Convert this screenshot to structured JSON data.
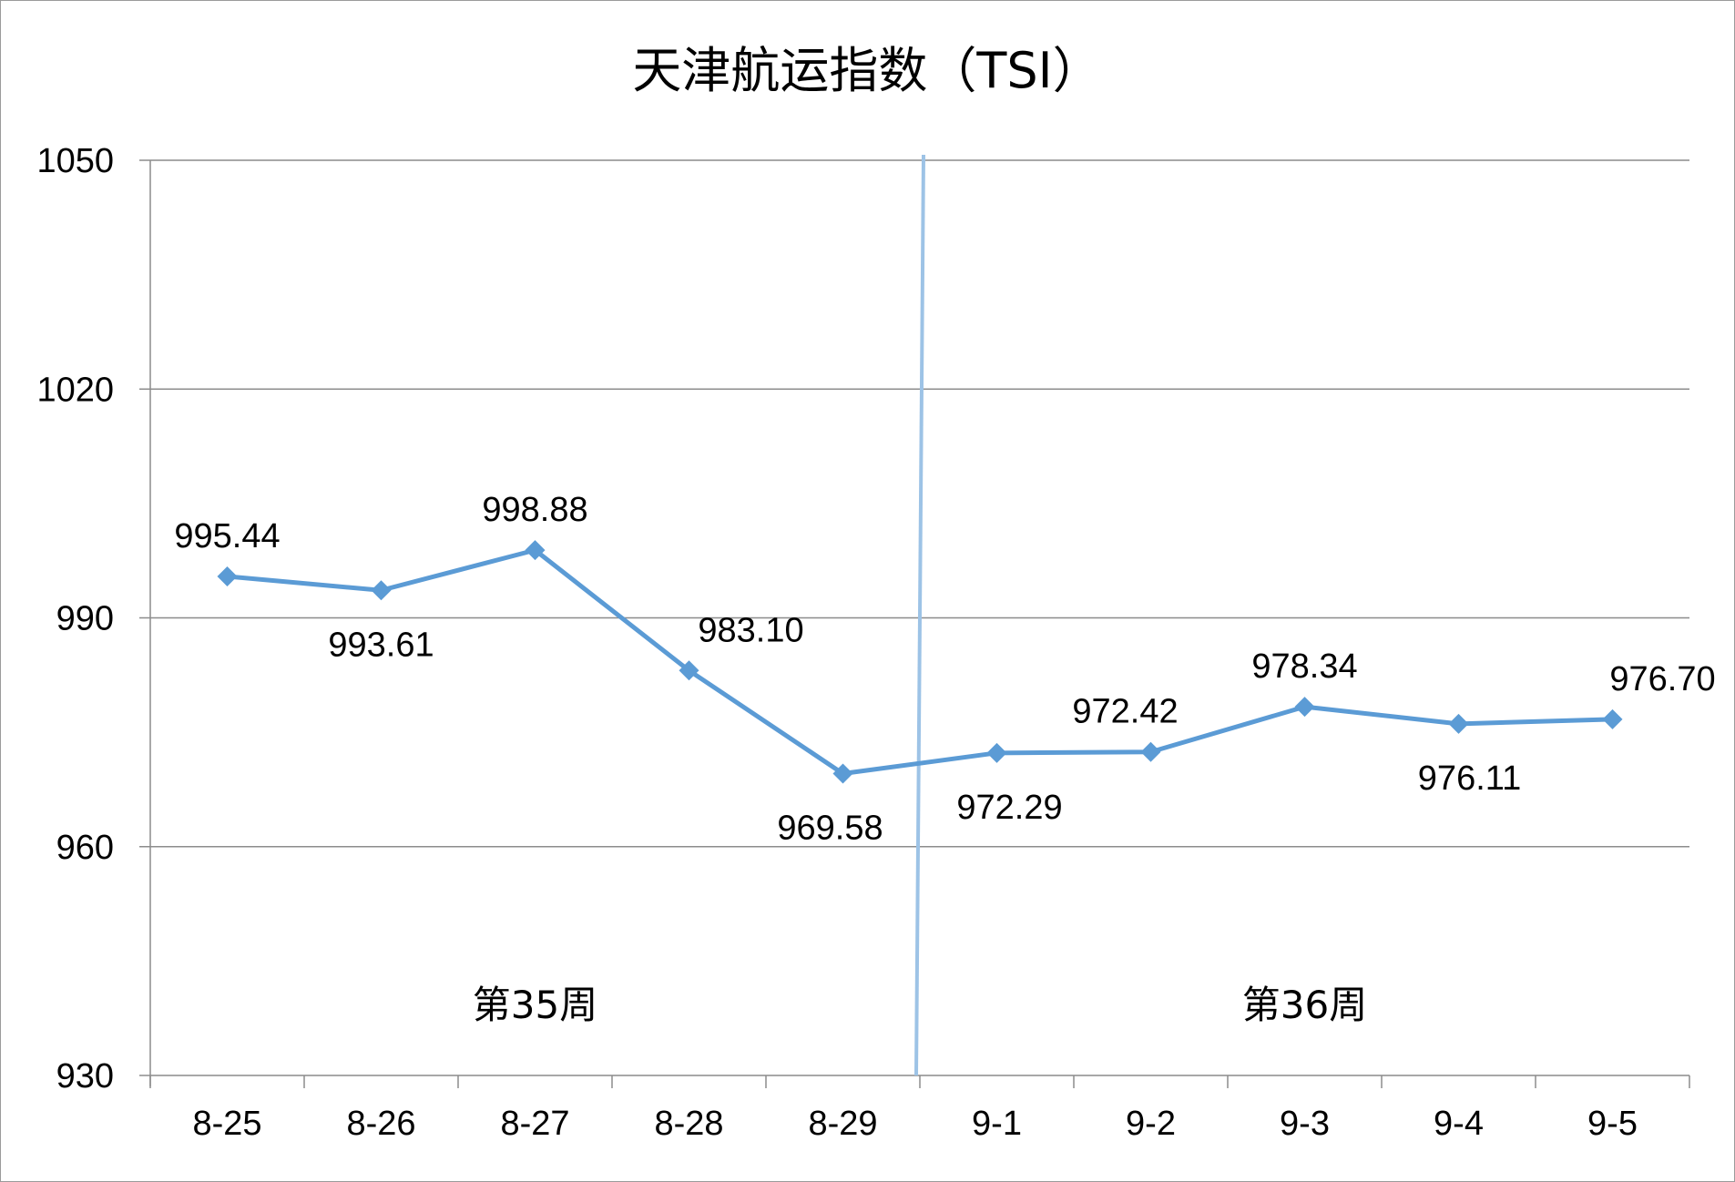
{
  "chart_data": {
    "type": "line",
    "title": "天津航运指数（TSI）",
    "xlabel": "",
    "ylabel": "",
    "categories": [
      "8-25",
      "8-26",
      "8-27",
      "8-28",
      "8-29",
      "9-1",
      "9-2",
      "9-3",
      "9-4",
      "9-5"
    ],
    "series": [
      {
        "values": [
          995.44,
          993.61,
          998.88,
          983.1,
          969.58,
          972.29,
          972.42,
          978.34,
          976.11,
          976.7
        ],
        "labels": [
          "995.44",
          "993.61",
          "998.88",
          "983.10",
          "969.58",
          "972.29",
          "972.42",
          "978.34",
          "976.11",
          "976.70"
        ],
        "color": "#5b9bd5"
      }
    ],
    "ylim": [
      930,
      1050
    ],
    "yticks": [
      "930",
      "960",
      "990",
      "1020",
      "1050"
    ],
    "grid": true,
    "legend": "none",
    "annotations": [
      {
        "text": "第35周",
        "between": [
          "8-25",
          "8-29"
        ]
      },
      {
        "text": "第36周",
        "between": [
          "9-1",
          "9-5"
        ]
      }
    ],
    "week_divider": {
      "between": [
        "8-29",
        "9-1"
      ],
      "color": "#9dc3e6"
    }
  }
}
